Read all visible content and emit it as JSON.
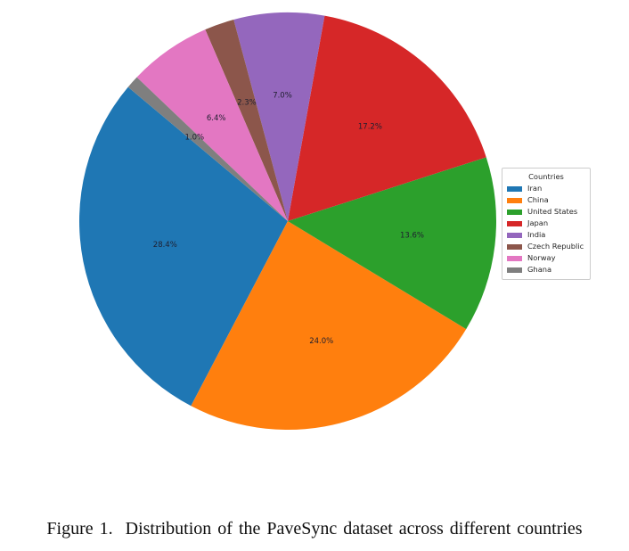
{
  "chart_data": {
    "type": "pie",
    "title": "",
    "legend_title": "Countries",
    "legend_position": "center right",
    "start_angle": 140,
    "direction": "counterclockwise",
    "pct_distance": 0.6,
    "unit": "%",
    "categories": [
      "Iran",
      "China",
      "United States",
      "Japan",
      "India",
      "Czech Republic",
      "Norway",
      "Ghana"
    ],
    "values": [
      28.4,
      24.0,
      13.6,
      17.2,
      7.0,
      2.3,
      6.4,
      1.0
    ],
    "slices": [
      {
        "label": "Iran",
        "value": 28.4,
        "display": "28.4%",
        "color": "#1f77b4"
      },
      {
        "label": "China",
        "value": 24.0,
        "display": "24.0%",
        "color": "#ff7f0e"
      },
      {
        "label": "United States",
        "value": 13.6,
        "display": "13.6%",
        "color": "#2ca02c"
      },
      {
        "label": "Japan",
        "value": 17.2,
        "display": "17.2%",
        "color": "#d62728"
      },
      {
        "label": "India",
        "value": 7.0,
        "display": "7.0%",
        "color": "#9467bd"
      },
      {
        "label": "Czech Republic",
        "value": 2.3,
        "display": "2.3%",
        "color": "#8c564b"
      },
      {
        "label": "Norway",
        "value": 6.4,
        "display": "6.4%",
        "color": "#e377c2"
      },
      {
        "label": "Ghana",
        "value": 1.0,
        "display": "1.0%",
        "color": "#7f7f7f"
      }
    ]
  },
  "caption": {
    "text": "Figure 1.  Distribution of the PaveSync dataset across different countries"
  }
}
